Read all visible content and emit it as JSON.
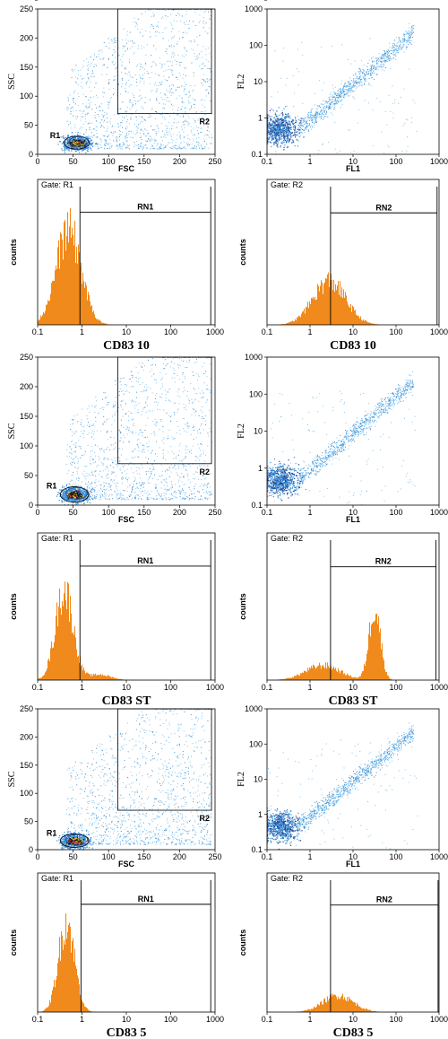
{
  "colors": {
    "histogram": "#f08a1c",
    "dot_light": "#7fc4ee",
    "dot_mid": "#3a8fd6",
    "dot_dense": "#1a3d8f",
    "gate_line": "#000000"
  },
  "chart_data": [
    {
      "type": "scatter",
      "panel": "scatter-fsc-ssc",
      "row": 0,
      "xlabel": "FSC",
      "ylabel": "SSC",
      "xlim": [
        0,
        250
      ],
      "ylim": [
        0,
        250
      ],
      "xticks": [
        "0",
        "50",
        "100",
        "150",
        "200",
        "250"
      ],
      "yticks": [
        "0",
        "50",
        "100",
        "150",
        "200",
        "250"
      ],
      "gates": [
        {
          "name": "R1",
          "cx": 55,
          "cy": 20,
          "rx": 18,
          "ry": 11
        },
        {
          "name": "R2",
          "x0": 113,
          "x1": 245,
          "y0": 70,
          "y1": 250
        }
      ],
      "gate_labels": [
        "R1",
        "R2"
      ]
    },
    {
      "type": "scatter",
      "panel": "scatter-fl1-fl2",
      "row": 0,
      "log": true,
      "xlabel": "FL1",
      "ylabel": "FL2",
      "xlim": [
        0.1,
        1000
      ],
      "ylim": [
        0.1,
        1000
      ],
      "xticks": [
        "0.1",
        "1",
        "10",
        "100",
        "1000"
      ],
      "yticks": [
        "0.1",
        "1",
        "10",
        "100",
        "1000"
      ]
    },
    {
      "type": "histogram",
      "panel": "hist-fl1",
      "row": 0,
      "log": true,
      "gate_text": "Gate: R1",
      "region_label": "RN1",
      "ylabel": "counts",
      "xlim": [
        0.1,
        1000
      ],
      "ylim": [
        0,
        400
      ],
      "xticks": [
        "0.1",
        "1",
        "10",
        "100",
        "1000"
      ],
      "yticks": [
        "0",
        "80",
        "160",
        "240",
        "320",
        "400"
      ],
      "region": [
        0.9,
        800
      ],
      "region_y": 310,
      "peaks": [
        {
          "center": 0.5,
          "height": 260,
          "width": 0.28
        }
      ],
      "caption": "CD83 10"
    },
    {
      "type": "histogram",
      "panel": "hist-fl2",
      "row": 0,
      "log": true,
      "gate_text": "Gate: R2",
      "region_label": "RN2",
      "ylabel": "counts",
      "xlim": [
        0.1,
        1000
      ],
      "ylim": [
        0,
        100
      ],
      "xticks": [
        "0.1",
        "1",
        "10",
        "100",
        "1000"
      ],
      "yticks": [
        "0",
        "20",
        "40",
        "60",
        "80",
        "100"
      ],
      "region": [
        3,
        900
      ],
      "region_y": 77,
      "peaks": [
        {
          "center": 2.8,
          "height": 30,
          "width": 0.38
        }
      ],
      "caption": "CD83 10"
    },
    {
      "type": "scatter",
      "panel": "scatter-fsc-ssc",
      "row": 1,
      "xlabel": "FSC",
      "ylabel": "SSC",
      "xlim": [
        0,
        250
      ],
      "ylim": [
        0,
        250
      ],
      "xticks": [
        "0",
        "50",
        "100",
        "150",
        "200",
        "250"
      ],
      "yticks": [
        "0",
        "50",
        "100",
        "150",
        "200",
        "250"
      ],
      "gates": [
        {
          "name": "R1",
          "cx": 52,
          "cy": 18,
          "rx": 20,
          "ry": 13
        },
        {
          "name": "R2",
          "x0": 113,
          "x1": 245,
          "y0": 70,
          "y1": 250
        }
      ],
      "gate_labels": [
        "R1",
        "R2"
      ]
    },
    {
      "type": "scatter",
      "panel": "scatter-fl1-fl2",
      "row": 1,
      "log": true,
      "xlabel": "FL1",
      "ylabel": "FL2",
      "xlim": [
        0.1,
        1000
      ],
      "ylim": [
        0.1,
        1000
      ],
      "xticks": [
        "0.1",
        "1",
        "10",
        "100",
        "1000"
      ],
      "yticks": [
        "0.1",
        "1",
        "10",
        "100",
        "1000"
      ]
    },
    {
      "type": "histogram",
      "panel": "hist-fl1",
      "row": 1,
      "log": true,
      "gate_text": "Gate: R1",
      "region_label": "RN1",
      "ylabel": "counts",
      "xlim": [
        0.1,
        1000
      ],
      "ylim": [
        0,
        800
      ],
      "xticks": [
        "0.1",
        "1",
        "10",
        "100",
        "1000"
      ],
      "yticks": [
        "0",
        "160",
        "320",
        "480",
        "640",
        "800"
      ],
      "region": [
        0.9,
        800
      ],
      "region_y": 620,
      "peaks": [
        {
          "center": 0.4,
          "height": 490,
          "width": 0.2
        },
        {
          "center": 2.5,
          "height": 30,
          "width": 0.25
        }
      ],
      "caption": "CD83 ST"
    },
    {
      "type": "histogram",
      "panel": "hist-fl2",
      "row": 1,
      "log": true,
      "gate_text": "Gate: R2",
      "region_label": "RN2",
      "ylabel": "counts",
      "xlim": [
        0.1,
        1000
      ],
      "ylim": [
        0,
        100
      ],
      "xticks": [
        "0.1",
        "1",
        "10",
        "100",
        "1000"
      ],
      "yticks": [
        "0",
        "20",
        "40",
        "60",
        "80",
        "100"
      ],
      "region": [
        3,
        850
      ],
      "region_y": 77,
      "peaks": [
        {
          "center": 32,
          "height": 50,
          "width": 0.13
        },
        {
          "center": 2,
          "height": 10,
          "width": 0.4
        }
      ],
      "caption": "CD83 ST"
    },
    {
      "type": "scatter",
      "panel": "scatter-fsc-ssc",
      "row": 2,
      "xlabel": "FSC",
      "ylabel": "SSC",
      "xlim": [
        0,
        250
      ],
      "ylim": [
        0,
        250
      ],
      "xticks": [
        "0",
        "50",
        "100",
        "150",
        "200",
        "250"
      ],
      "yticks": [
        "0",
        "50",
        "100",
        "150",
        "200",
        "250"
      ],
      "gates": [
        {
          "name": "R1",
          "cx": 52,
          "cy": 16,
          "rx": 20,
          "ry": 12
        },
        {
          "name": "R2",
          "x0": 113,
          "x1": 245,
          "y0": 70,
          "y1": 250
        }
      ],
      "gate_labels": [
        "R1",
        "R2"
      ]
    },
    {
      "type": "scatter",
      "panel": "scatter-fl1-fl2",
      "row": 2,
      "log": true,
      "xlabel": "FL1",
      "ylabel": "FL2",
      "xlim": [
        0.1,
        1000
      ],
      "ylim": [
        0.1,
        1000
      ],
      "xticks": [
        "0.1",
        "1",
        "10",
        "100",
        "1000"
      ],
      "yticks": [
        "0.1",
        "1",
        "10",
        "100",
        "1000"
      ]
    },
    {
      "type": "histogram",
      "panel": "hist-fl1",
      "row": 2,
      "log": true,
      "gate_text": "Gate: R1",
      "region_label": "RN1",
      "ylabel": "counts",
      "xlim": [
        0.1,
        1000
      ],
      "ylim": [
        0,
        800
      ],
      "xticks": [
        "0.1",
        "1",
        "10",
        "100",
        "1000"
      ],
      "yticks": [
        "0",
        "160",
        "320",
        "480",
        "640",
        "800"
      ],
      "region": [
        0.95,
        800
      ],
      "region_y": 620,
      "peaks": [
        {
          "center": 0.45,
          "height": 520,
          "width": 0.18
        }
      ],
      "caption": "CD83 5"
    },
    {
      "type": "histogram",
      "panel": "hist-fl2",
      "row": 2,
      "log": true,
      "gate_text": "Gate: R2",
      "region_label": "RN2",
      "ylabel": "counts",
      "xlim": [
        0.1,
        1000
      ],
      "ylim": [
        0,
        100
      ],
      "xticks": [
        "0.1",
        "1",
        "10",
        "100",
        "1000"
      ],
      "yticks": [
        "0",
        "20",
        "40",
        "60",
        "80",
        "100"
      ],
      "region": [
        3,
        950
      ],
      "region_y": 77,
      "peaks": [
        {
          "center": 4.5,
          "height": 12,
          "width": 0.35
        }
      ],
      "caption": "CD83 5"
    }
  ]
}
